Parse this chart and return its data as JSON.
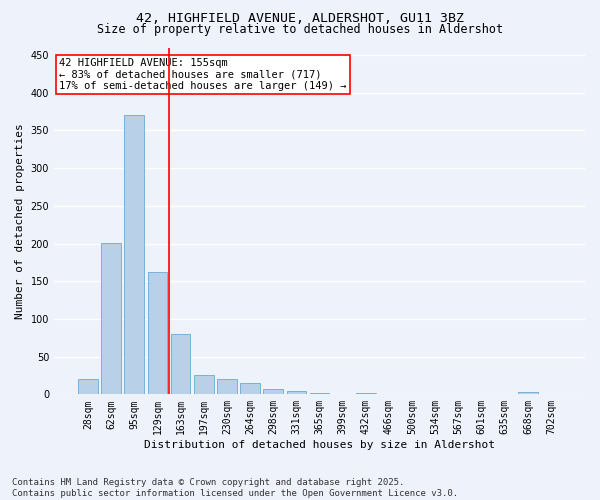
{
  "title1": "42, HIGHFIELD AVENUE, ALDERSHOT, GU11 3BZ",
  "title2": "Size of property relative to detached houses in Aldershot",
  "xlabel": "Distribution of detached houses by size in Aldershot",
  "ylabel": "Number of detached properties",
  "categories": [
    "28sqm",
    "62sqm",
    "95sqm",
    "129sqm",
    "163sqm",
    "197sqm",
    "230sqm",
    "264sqm",
    "298sqm",
    "331sqm",
    "365sqm",
    "399sqm",
    "432sqm",
    "466sqm",
    "500sqm",
    "534sqm",
    "567sqm",
    "601sqm",
    "635sqm",
    "668sqm",
    "702sqm"
  ],
  "values": [
    20,
    201,
    370,
    162,
    80,
    25,
    20,
    15,
    7,
    5,
    2,
    0,
    2,
    0,
    0,
    0,
    0,
    0,
    0,
    3,
    0
  ],
  "bar_color": "#b8d0e8",
  "bar_edge_color": "#6aaad4",
  "vline_color": "red",
  "vline_x": 3.5,
  "annotation_text": "42 HIGHFIELD AVENUE: 155sqm\n← 83% of detached houses are smaller (717)\n17% of semi-detached houses are larger (149) →",
  "annotation_box_color": "white",
  "annotation_box_edge": "red",
  "ylim": [
    0,
    460
  ],
  "yticks": [
    0,
    50,
    100,
    150,
    200,
    250,
    300,
    350,
    400,
    450
  ],
  "footer": "Contains HM Land Registry data © Crown copyright and database right 2025.\nContains public sector information licensed under the Open Government Licence v3.0.",
  "bg_color": "#eef2fb",
  "plot_bg_color": "#eef2fb",
  "grid_color": "white",
  "title_fontsize": 9.5,
  "subtitle_fontsize": 8.5,
  "axis_label_fontsize": 8,
  "tick_fontsize": 7,
  "footer_fontsize": 6.5,
  "annot_fontsize": 7.5
}
